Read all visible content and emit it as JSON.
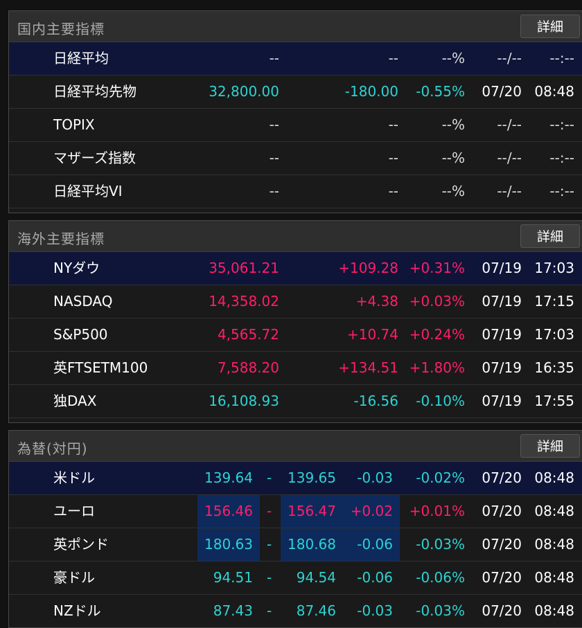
{
  "detail_label": "詳細",
  "domestic": {
    "title": "国内主要指標",
    "rows": [
      {
        "name": "日経平均",
        "price": "--",
        "change": "--",
        "pct": "--%",
        "date": "--/--",
        "time": "--:--"
      },
      {
        "name": "日経平均先物",
        "price": "32,800.00",
        "change": "-180.00",
        "pct": "-0.55%",
        "date": "07/20",
        "time": "08:48"
      },
      {
        "name": "TOPIX",
        "price": "--",
        "change": "--",
        "pct": "--%",
        "date": "--/--",
        "time": "--:--"
      },
      {
        "name": "マザーズ指数",
        "price": "--",
        "change": "--",
        "pct": "--%",
        "date": "--/--",
        "time": "--:--"
      },
      {
        "name": "日経平均VI",
        "price": "--",
        "change": "--",
        "pct": "--%",
        "date": "--/--",
        "time": "--:--"
      }
    ]
  },
  "overseas": {
    "title": "海外主要指標",
    "rows": [
      {
        "name": "NYダウ",
        "price": "35,061.21",
        "change": "+109.28",
        "pct": "+0.31%",
        "date": "07/19",
        "time": "17:03"
      },
      {
        "name": "NASDAQ",
        "price": "14,358.02",
        "change": "+4.38",
        "pct": "+0.03%",
        "date": "07/19",
        "time": "17:15"
      },
      {
        "name": "S&P500",
        "price": "4,565.72",
        "change": "+10.74",
        "pct": "+0.24%",
        "date": "07/19",
        "time": "17:03"
      },
      {
        "name": "英FTSETM100",
        "price": "7,588.20",
        "change": "+134.51",
        "pct": "+1.80%",
        "date": "07/19",
        "time": "16:35"
      },
      {
        "name": "独DAX",
        "price": "16,108.93",
        "change": "-16.56",
        "pct": "-0.10%",
        "date": "07/19",
        "time": "17:55"
      }
    ]
  },
  "fx": {
    "title": "為替(対円)",
    "separator": "-",
    "rows": [
      {
        "name": "米ドル",
        "bid": "139.64",
        "ask": "139.65",
        "change": "-0.03",
        "pct": "-0.02%",
        "date": "07/20",
        "time": "08:48"
      },
      {
        "name": "ユーロ",
        "bid": "156.46",
        "ask": "156.47",
        "change": "+0.02",
        "pct": "+0.01%",
        "date": "07/20",
        "time": "08:48"
      },
      {
        "name": "英ポンド",
        "bid": "180.63",
        "ask": "180.68",
        "change": "-0.06",
        "pct": "-0.03%",
        "date": "07/20",
        "time": "08:48"
      },
      {
        "name": "豪ドル",
        "bid": "94.51",
        "ask": "94.54",
        "change": "-0.06",
        "pct": "-0.06%",
        "date": "07/20",
        "time": "08:48"
      },
      {
        "name": "NZドル",
        "bid": "87.43",
        "ask": "87.46",
        "change": "-0.03",
        "pct": "-0.03%",
        "date": "07/20",
        "time": "08:48"
      }
    ]
  },
  "colors": {
    "up": "#ff1e6a",
    "down": "#2ed3d3",
    "neutral": "#dddddd",
    "highlight_row": "#0e1538",
    "flash_cell": "#0e2a5c"
  }
}
